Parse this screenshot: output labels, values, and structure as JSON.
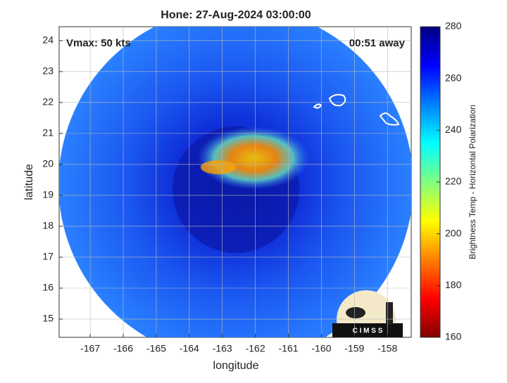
{
  "chart_data": {
    "type": "image",
    "title": "Hone: 27-Aug-2024 03:00:00",
    "annotations": [
      "Vmax: 50 kts",
      "00:51 away"
    ],
    "xlabel": "longitude",
    "ylabel": "latitude",
    "xlim": [
      -167.94,
      -157.28
    ],
    "ylim": [
      14.41,
      24.45
    ],
    "xticks": [
      -167,
      -166,
      -165,
      -164,
      -163,
      -162,
      -161,
      -160,
      -159,
      -158
    ],
    "yticks": [
      15,
      16,
      17,
      18,
      19,
      20,
      21,
      22,
      23,
      24
    ],
    "grid": true,
    "colorbar": {
      "label": "Brightness Temp - Horizontal Polarization",
      "lim": [
        160,
        280
      ],
      "ticks": [
        160,
        180,
        200,
        220,
        240,
        260,
        280
      ],
      "colormap": [
        "#800000",
        "#ff0000",
        "#ff8000",
        "#ffff00",
        "#80ff80",
        "#00ffff",
        "#0080ff",
        "#0000ff",
        "#000080"
      ]
    },
    "logo": "C I M S S"
  }
}
